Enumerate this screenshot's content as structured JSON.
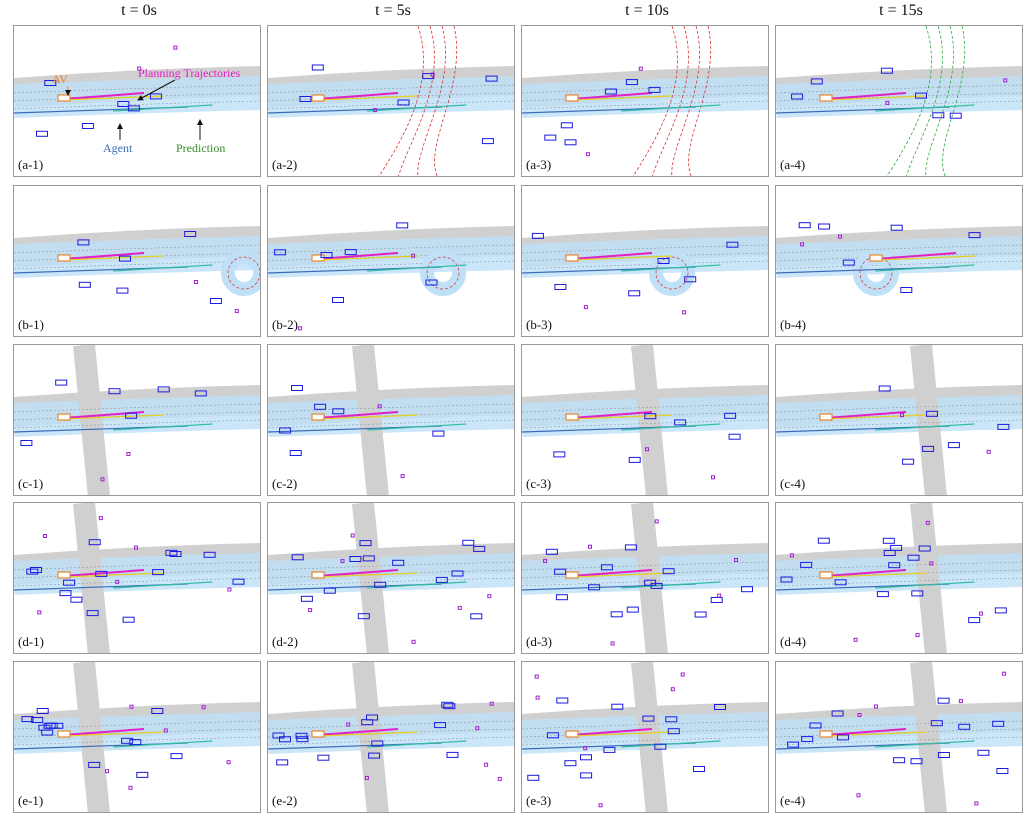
{
  "headers": [
    "t = 0s",
    "t = 5s",
    "t = 10s",
    "t = 15s"
  ],
  "rows": [
    {
      "labels": [
        "(a-1)",
        "(a-2)",
        "(a-3)",
        "(a-4)"
      ]
    },
    {
      "labels": [
        "(b-1)",
        "(b-2)",
        "(b-3)",
        "(b-4)"
      ]
    },
    {
      "labels": [
        "(c-1)",
        "(c-2)",
        "(c-3)",
        "(c-4)"
      ]
    },
    {
      "labels": [
        "(d-1)",
        "(d-2)",
        "(d-3)",
        "(d-4)"
      ]
    },
    {
      "labels": [
        "(e-1)",
        "(e-2)",
        "(e-3)",
        "(e-4)"
      ]
    }
  ],
  "annotations": {
    "av": "AV",
    "planning": "Planning Trajectories",
    "agent": "Agent",
    "prediction": "Prediction"
  },
  "colors": {
    "av": "#e8862a",
    "planning": "#e020c8",
    "agent": "#3a6ab8",
    "prediction": "#3a8a2a",
    "agent_box": "#1a1ae0",
    "road": "#d0d0d0",
    "route": "#bfe0f7",
    "red_lane": "#d83030",
    "green_lane": "#2aa83a"
  }
}
